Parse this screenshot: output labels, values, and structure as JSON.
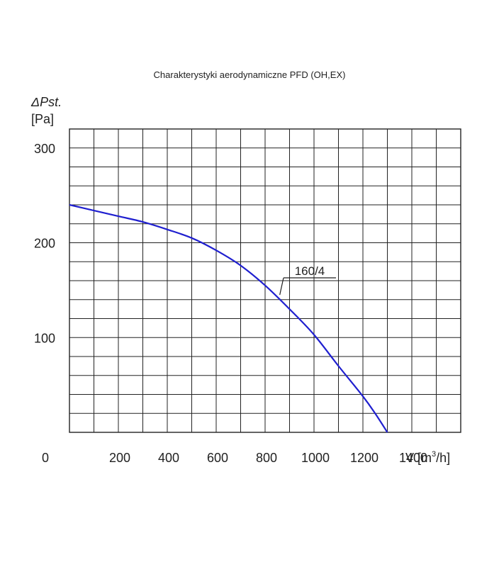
{
  "chart_data": {
    "type": "line",
    "title": "Charakterystyki aerodynamiczne PFD (OH,EX)",
    "ylabel_symbol": "ΔPst.",
    "ylabel_unit": "[Pa]",
    "xlabel_prefix": "V [m",
    "xlabel_sup": "3",
    "xlabel_suffix": "/h]",
    "origin_label": "0",
    "x_ticks": [
      200,
      400,
      600,
      800,
      1000,
      1200,
      1400
    ],
    "y_ticks": [
      100,
      200,
      300
    ],
    "xlim": [
      0,
      1600
    ],
    "ylim": [
      0,
      320
    ],
    "x_grid_step": 100,
    "y_grid_step": 20,
    "grid": true,
    "series": [
      {
        "name": "160/4",
        "color": "#1f1fcf",
        "x": [
          0,
          100,
          200,
          300,
          400,
          500,
          600,
          700,
          800,
          900,
          1000,
          1100,
          1200,
          1250,
          1300
        ],
        "y": [
          240,
          234,
          228,
          222,
          214,
          205,
          192,
          176,
          155,
          130,
          103,
          70,
          38,
          20,
          0
        ]
      }
    ],
    "annotation": {
      "text": "160/4",
      "x": 860,
      "y": 145
    }
  }
}
